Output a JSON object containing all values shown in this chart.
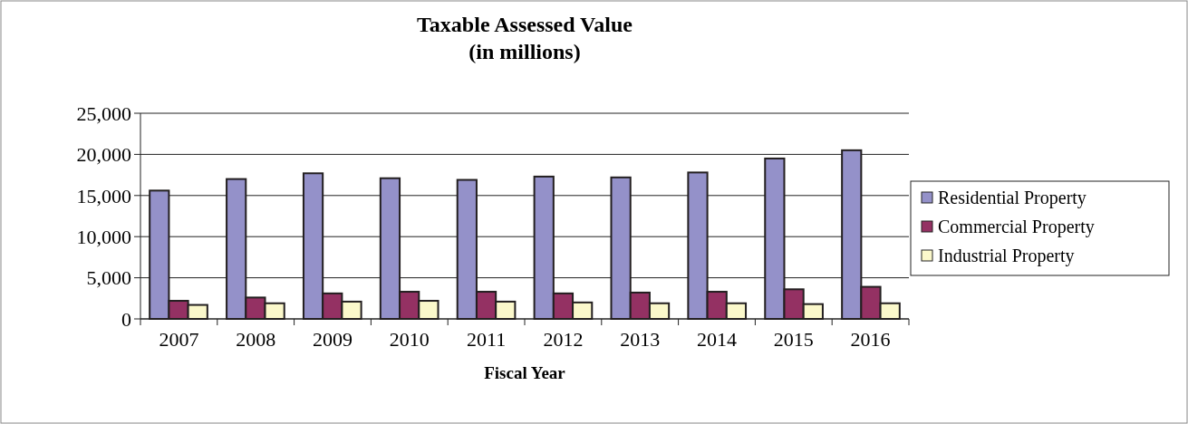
{
  "chart_data": {
    "type": "bar",
    "title": "Taxable Assessed Value\n(in millions)",
    "xlabel": "Fiscal Year",
    "categories": [
      "2007",
      "2008",
      "2009",
      "2010",
      "2011",
      "2012",
      "2013",
      "2014",
      "2015",
      "2016"
    ],
    "series": [
      {
        "name": "Residential Property",
        "color": "#9491c9",
        "values": [
          15600,
          17000,
          17700,
          17100,
          16900,
          17300,
          17200,
          17800,
          19500,
          20500
        ]
      },
      {
        "name": "Commercial Property",
        "color": "#943163",
        "values": [
          2200,
          2600,
          3100,
          3300,
          3300,
          3100,
          3200,
          3300,
          3600,
          3900
        ]
      },
      {
        "name": "Industrial Property",
        "color": "#fbf8cb",
        "values": [
          1700,
          1900,
          2100,
          2200,
          2100,
          2000,
          1900,
          1900,
          1800,
          1900
        ]
      }
    ],
    "ylim": [
      0,
      25000
    ],
    "yticks": [
      {
        "value": 0,
        "label": "0"
      },
      {
        "value": 5000,
        "label": "5,000"
      },
      {
        "value": 10000,
        "label": "10,000"
      },
      {
        "value": 15000,
        "label": "15,000"
      },
      {
        "value": 20000,
        "label": "20,000"
      },
      {
        "value": 25000,
        "label": "25,000"
      }
    ],
    "grid": "y",
    "legend": "right"
  }
}
